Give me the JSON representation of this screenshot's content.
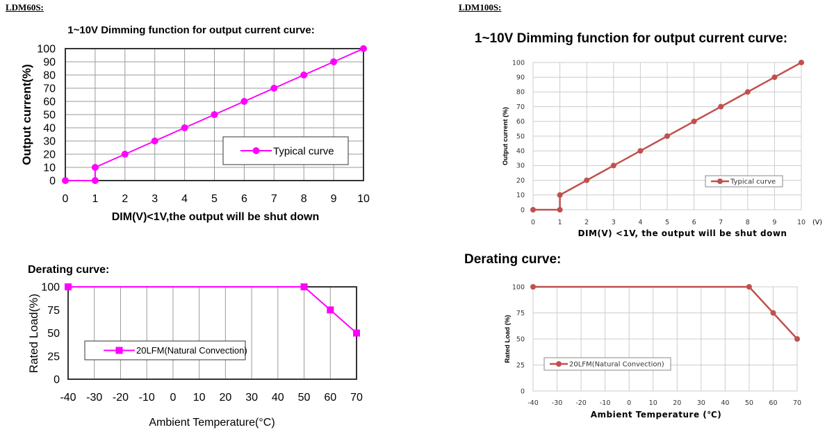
{
  "sections": [
    {
      "model": "LDM60S:"
    },
    {
      "model": "LDM100S:"
    }
  ],
  "chart_data": [
    {
      "type": "line",
      "title": "1~10V Dimming function for output current curve:",
      "xlabel": "DIM(V)<1V,the output will be shut down",
      "ylabel": "Output current(%)",
      "x_unit": "",
      "xlim": [
        0,
        10
      ],
      "ylim": [
        0,
        100
      ],
      "xticks": [
        "0",
        "1",
        "2",
        "3",
        "4",
        "5",
        "6",
        "7",
        "8",
        "9",
        "10"
      ],
      "yticks": [
        "0",
        "10",
        "20",
        "30",
        "40",
        "50",
        "60",
        "70",
        "80",
        "90",
        "100"
      ],
      "grid": "both",
      "legend": "center-right",
      "color": "#ff00ff",
      "marker": "circle",
      "series": [
        {
          "name": "Typical curve",
          "x": [
            0,
            1,
            1,
            2,
            3,
            4,
            5,
            6,
            7,
            8,
            9,
            10
          ],
          "y": [
            0,
            0,
            10,
            20,
            30,
            40,
            50,
            60,
            70,
            80,
            90,
            100
          ]
        }
      ]
    },
    {
      "type": "line",
      "title": "Derating curve:",
      "xlabel": "Ambient Temperature(°C)",
      "ylabel": "Rated Load(%)",
      "x_unit": "",
      "xlim": [
        -40,
        70
      ],
      "ylim": [
        0,
        100
      ],
      "xticks": [
        "-40",
        "-30",
        "-20",
        "-10",
        "0",
        "10",
        "20",
        "30",
        "40",
        "50",
        "60",
        "70"
      ],
      "yticks": [
        "0",
        "25",
        "50",
        "75",
        "100"
      ],
      "grid": "vertical",
      "legend": "center-left",
      "color": "#ff00ff",
      "marker": "square",
      "series": [
        {
          "name": "20LFM(Natural Convection)",
          "x": [
            -40,
            50,
            60,
            70
          ],
          "y": [
            100,
            100,
            75,
            50
          ]
        }
      ]
    },
    {
      "type": "line",
      "title": "1~10V Dimming function for output current curve:",
      "xlabel": "DIM(V) <1V, the output will be shut down",
      "ylabel": "Output current (%)",
      "x_unit": "(V)",
      "xlim": [
        0,
        10
      ],
      "ylim": [
        0,
        100
      ],
      "xticks": [
        "0",
        "1",
        "2",
        "3",
        "4",
        "5",
        "6",
        "7",
        "8",
        "9",
        "10"
      ],
      "yticks": [
        "0",
        "10",
        "20",
        "30",
        "40",
        "50",
        "60",
        "70",
        "80",
        "90",
        "100"
      ],
      "grid": "both",
      "legend": "center-right",
      "color": "#c0504d",
      "marker": "circle",
      "series": [
        {
          "name": "Typical curve",
          "x": [
            0,
            1,
            1,
            2,
            3,
            4,
            5,
            6,
            7,
            8,
            9,
            10
          ],
          "y": [
            0,
            0,
            10,
            20,
            30,
            40,
            50,
            60,
            70,
            80,
            90,
            100
          ]
        }
      ]
    },
    {
      "type": "line",
      "title": "Derating curve:",
      "xlabel": "Ambient Temperature (℃)",
      "ylabel": "Rated Load (%)",
      "x_unit": "",
      "xlim": [
        -40,
        70
      ],
      "ylim": [
        0,
        100
      ],
      "xticks": [
        "-40",
        "-30",
        "-20",
        "-10",
        "0",
        "10",
        "20",
        "30",
        "40",
        "50",
        "60",
        "70"
      ],
      "yticks": [
        "0",
        "25",
        "50",
        "75",
        "100"
      ],
      "grid": "both",
      "legend": "bottom-left",
      "color": "#c0504d",
      "marker": "circle",
      "series": [
        {
          "name": "20LFM(Natural Convection)",
          "x": [
            -40,
            50,
            60,
            70
          ],
          "y": [
            100,
            100,
            75,
            50
          ]
        }
      ]
    }
  ]
}
